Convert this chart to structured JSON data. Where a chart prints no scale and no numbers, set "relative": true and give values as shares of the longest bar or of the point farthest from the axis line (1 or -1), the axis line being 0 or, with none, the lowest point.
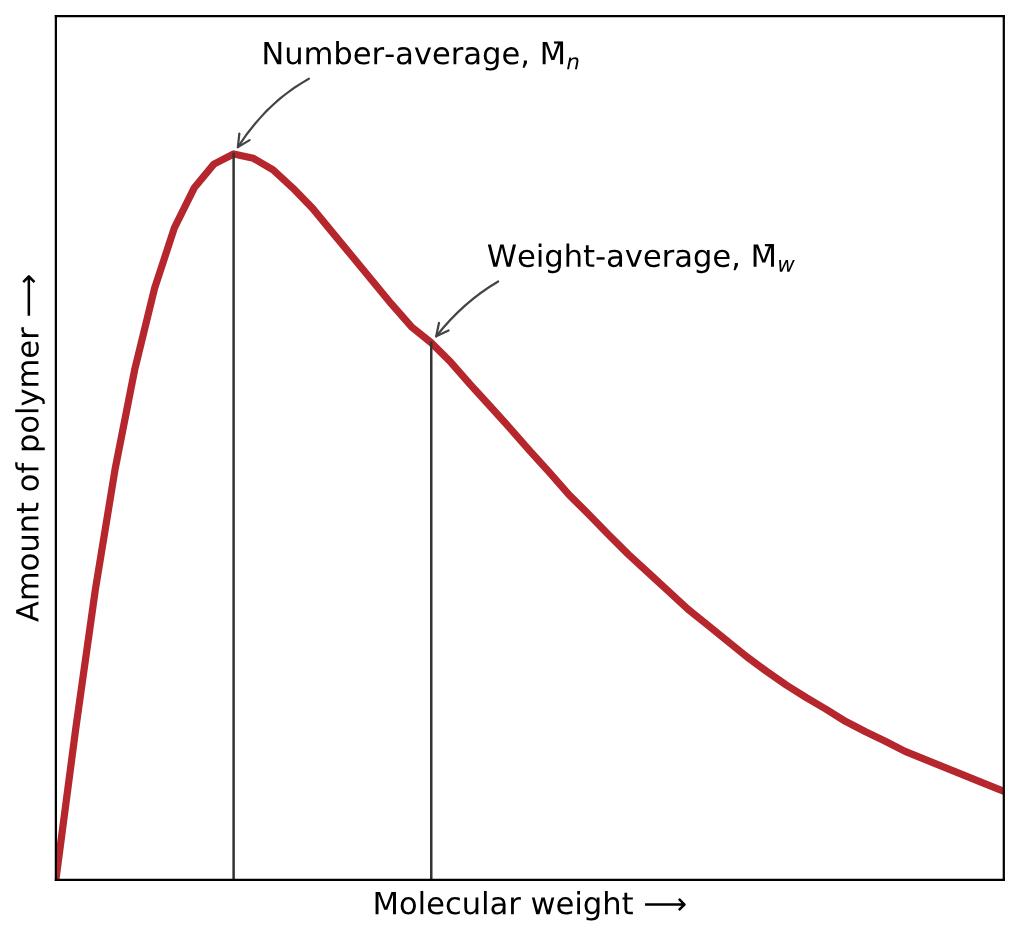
{
  "chart_data": {
    "type": "line",
    "relative": true,
    "xlabel": "Molecular weight ⟶",
    "ylabel": "Amount of polymer ⟶",
    "tick_labels": false,
    "grid": false,
    "marker": "none",
    "line_style": "solid",
    "categories": [
      null,
      null,
      null,
      null,
      null,
      null,
      null,
      null,
      null,
      null,
      null,
      null,
      null,
      null,
      null,
      null,
      null,
      null,
      null,
      null,
      null,
      null,
      null,
      null,
      null,
      null,
      null,
      null,
      null,
      null,
      null,
      null,
      null,
      null,
      null,
      null,
      null,
      null,
      null,
      null,
      null,
      null,
      null,
      null,
      null,
      null,
      null,
      null,
      null
    ],
    "series": [
      {
        "color": "#b5272d",
        "values": [
          0,
          0.207,
          0.4,
          0.566,
          0.704,
          0.815,
          0.898,
          0.953,
          0.986,
          1,
          0.994,
          0.978,
          0.953,
          0.925,
          0.892,
          0.859,
          0.826,
          0.793,
          0.762,
          0.74,
          0.713,
          0.682,
          0.652,
          0.622,
          0.591,
          0.561,
          0.53,
          0.503,
          0.475,
          0.448,
          0.423,
          0.398,
          0.373,
          0.351,
          0.329,
          0.307,
          0.287,
          0.268,
          0.251,
          0.235,
          0.218,
          0.204,
          0.191,
          0.177,
          0.166,
          0.155,
          0.144,
          0.133,
          0.122
        ]
      }
    ],
    "annotations": [
      "Number-average, M̄$_{n}$",
      "Weight-average, M̄$_{w}$"
    ]
  }
}
